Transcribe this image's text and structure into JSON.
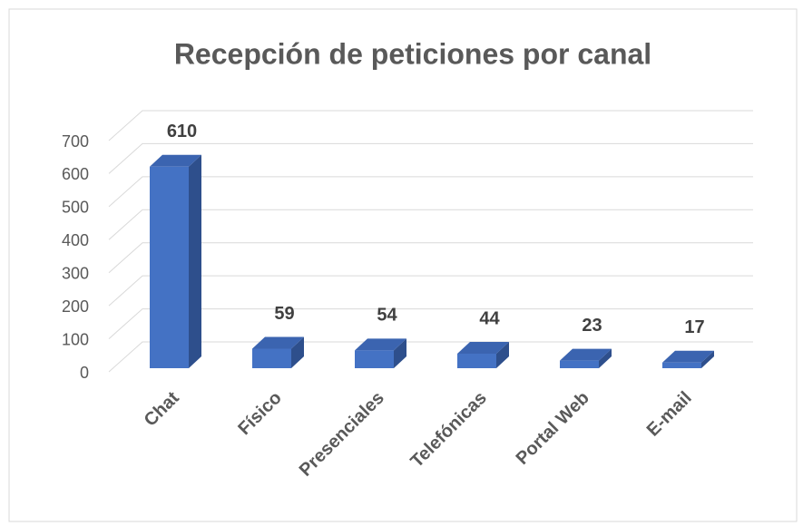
{
  "chart_data": {
    "type": "bar3d",
    "title": "Recepción de peticiones por canal",
    "categories": [
      "Chat",
      "Físico",
      "Presenciales",
      "Telefónicas",
      "Portal Web",
      "E-mail"
    ],
    "values": [
      610,
      59,
      54,
      44,
      23,
      17
    ],
    "color": "#4472c4",
    "ylim": [
      0,
      700
    ],
    "yticks": [
      0,
      100,
      200,
      300,
      400,
      500,
      600,
      700
    ],
    "grid": true
  }
}
